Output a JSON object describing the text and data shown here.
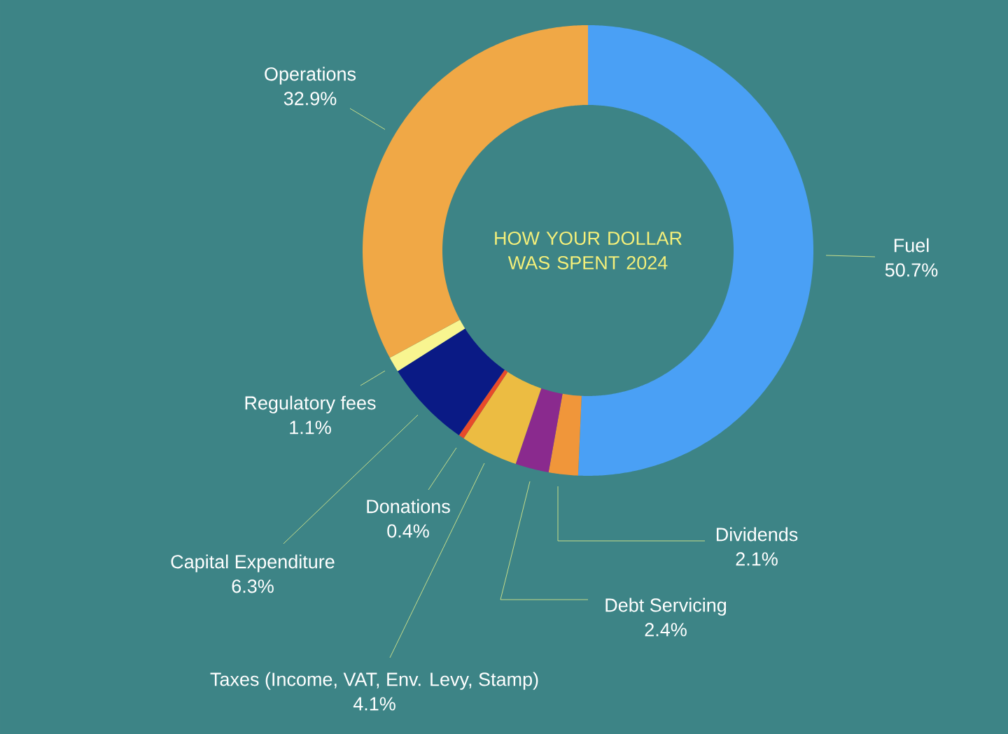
{
  "chart_data": {
    "type": "donut",
    "title": "HOW YOUR DOLLAR WAS SPENT 2024",
    "categories": [
      "Fuel",
      "Dividends",
      "Debt Servicing",
      "Taxes (Income, VAT, Env. Levy, Stamp)",
      "Donations",
      "Capital Expenditure",
      "Regulatory fees",
      "Operations"
    ],
    "values": [
      50.7,
      2.1,
      2.4,
      4.1,
      0.4,
      6.3,
      1.1,
      32.9
    ],
    "value_labels": [
      "50.7%",
      "2.1%",
      "2.4%",
      "4.1%",
      "0.4%",
      "6.3%",
      "1.1%",
      "32.9%"
    ],
    "colors": [
      "#4aa0f5",
      "#f0963a",
      "#8a2a8e",
      "#ecbc42",
      "#e84a2a",
      "#0a1a85",
      "#f8f590",
      "#f0a846"
    ]
  }
}
